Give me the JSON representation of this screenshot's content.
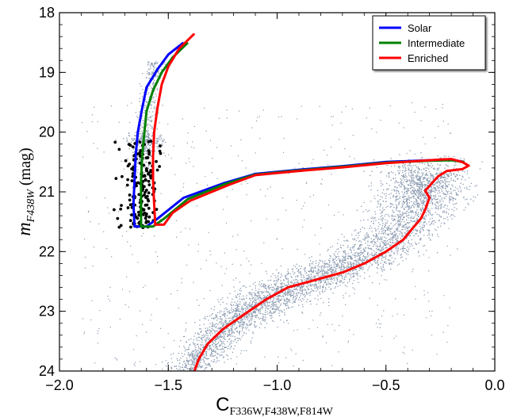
{
  "chart_data": {
    "type": "scatter",
    "xlabel": {
      "main": "C",
      "sub": "F336W,F438W,F814W"
    },
    "ylabel": {
      "main": "m",
      "sub": "F438W",
      "suffix": " (mag)"
    },
    "xlim": [
      -2.0,
      0.0
    ],
    "ylim": [
      24.0,
      18.0
    ],
    "y_inverted": true,
    "grid": false,
    "legend_placement": "top-right",
    "x_ticks": [
      {
        "value": -2.0,
        "label": "−2.0"
      },
      {
        "value": -1.5,
        "label": "−1.5"
      },
      {
        "value": -1.0,
        "label": "−1.0"
      },
      {
        "value": -0.5,
        "label": "−0.5"
      },
      {
        "value": 0.0,
        "label": "0.0"
      }
    ],
    "y_ticks": [
      {
        "value": 18,
        "label": "18"
      },
      {
        "value": 19,
        "label": "19"
      },
      {
        "value": 20,
        "label": "20"
      },
      {
        "value": 21,
        "label": "21"
      },
      {
        "value": 22,
        "label": "22"
      },
      {
        "value": 23,
        "label": "23"
      },
      {
        "value": 24,
        "label": "24"
      }
    ],
    "series": [
      {
        "name": "Solar",
        "color": "#0000ff",
        "kind": "line",
        "points": [
          [
            -1.43,
            18.5
          ],
          [
            -1.5,
            18.7
          ],
          [
            -1.55,
            18.95
          ],
          [
            -1.6,
            19.25
          ],
          [
            -1.62,
            19.6
          ],
          [
            -1.64,
            20.0
          ],
          [
            -1.65,
            20.4
          ],
          [
            -1.655,
            20.8
          ],
          [
            -1.66,
            21.2
          ],
          [
            -1.655,
            21.58
          ],
          [
            -1.6,
            21.58
          ],
          [
            -1.55,
            21.45
          ],
          [
            -1.43,
            21.1
          ],
          [
            -1.25,
            20.86
          ],
          [
            -1.1,
            20.7
          ],
          [
            -0.9,
            20.63
          ],
          [
            -0.7,
            20.57
          ],
          [
            -0.5,
            20.5
          ],
          [
            -0.3,
            20.47
          ],
          [
            -0.2,
            20.46
          ],
          [
            -0.14,
            20.5
          ]
        ]
      },
      {
        "name": "Intermediate",
        "color": "#008000",
        "kind": "line",
        "points": [
          [
            -1.41,
            18.5
          ],
          [
            -1.48,
            18.75
          ],
          [
            -1.53,
            19.0
          ],
          [
            -1.57,
            19.3
          ],
          [
            -1.6,
            19.65
          ],
          [
            -1.61,
            20.0
          ],
          [
            -1.62,
            20.4
          ],
          [
            -1.625,
            20.8
          ],
          [
            -1.625,
            21.2
          ],
          [
            -1.625,
            21.58
          ],
          [
            -1.57,
            21.58
          ],
          [
            -1.52,
            21.45
          ],
          [
            -1.41,
            21.12
          ],
          [
            -1.24,
            20.87
          ],
          [
            -1.1,
            20.71
          ],
          [
            -0.9,
            20.64
          ],
          [
            -0.7,
            20.58
          ],
          [
            -0.5,
            20.51
          ],
          [
            -0.3,
            20.48
          ],
          [
            -0.2,
            20.47
          ],
          [
            -0.14,
            20.5
          ]
        ]
      },
      {
        "name": "Enriched",
        "color": "#ff0000",
        "kind": "line",
        "points": [
          [
            -1.38,
            18.35
          ],
          [
            -1.45,
            18.6
          ],
          [
            -1.5,
            18.9
          ],
          [
            -1.53,
            19.2
          ],
          [
            -1.55,
            19.6
          ],
          [
            -1.565,
            20.0
          ],
          [
            -1.57,
            20.4
          ],
          [
            -1.57,
            20.8
          ],
          [
            -1.565,
            21.2
          ],
          [
            -1.56,
            21.55
          ],
          [
            -1.52,
            21.55
          ],
          [
            -1.48,
            21.35
          ],
          [
            -1.4,
            21.15
          ],
          [
            -1.22,
            20.88
          ],
          [
            -1.1,
            20.72
          ],
          [
            -0.9,
            20.65
          ],
          [
            -0.7,
            20.59
          ],
          [
            -0.5,
            20.52
          ],
          [
            -0.25,
            20.46
          ],
          [
            -0.2,
            20.45
          ],
          [
            -0.15,
            20.5
          ],
          [
            -0.12,
            20.56
          ],
          [
            -0.15,
            20.62
          ],
          [
            -0.22,
            20.65
          ],
          [
            -0.26,
            20.74
          ],
          [
            -0.28,
            20.82
          ],
          [
            -0.3,
            20.9
          ],
          [
            -0.32,
            20.98
          ],
          [
            -0.3,
            21.1
          ],
          [
            -0.32,
            21.3
          ],
          [
            -0.34,
            21.45
          ],
          [
            -0.38,
            21.62
          ],
          [
            -0.42,
            21.8
          ],
          [
            -0.5,
            22.0
          ],
          [
            -0.6,
            22.2
          ],
          [
            -0.7,
            22.35
          ],
          [
            -0.85,
            22.5
          ],
          [
            -0.95,
            22.6
          ],
          [
            -1.05,
            22.8
          ],
          [
            -1.15,
            23.05
          ],
          [
            -1.25,
            23.3
          ],
          [
            -1.32,
            23.55
          ],
          [
            -1.36,
            23.8
          ],
          [
            -1.38,
            24.0
          ]
        ]
      }
    ],
    "scatter_field": {
      "color": "#8a9ab0"
    },
    "scatter_members": {
      "color": "#000000"
    }
  }
}
